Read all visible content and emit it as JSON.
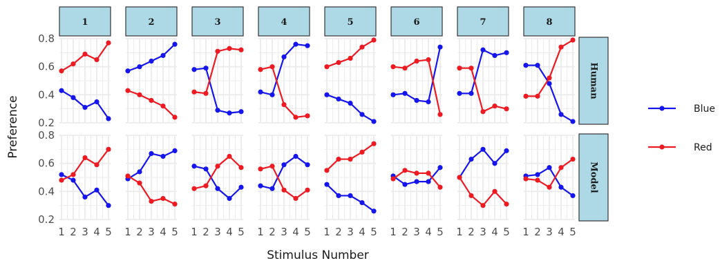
{
  "chart_data": {
    "type": "line",
    "xlabel": "Stimulus Number",
    "ylabel": "Preference",
    "x": [
      1,
      2,
      3,
      4,
      5
    ],
    "ylim": [
      0.2,
      0.8
    ],
    "yticks": [
      0.2,
      0.4,
      0.6,
      0.8
    ],
    "grid": true,
    "legend_position": "right",
    "col_facets": [
      "1",
      "2",
      "3",
      "4",
      "5",
      "6",
      "7",
      "8"
    ],
    "row_facets": [
      "Human",
      "Model"
    ],
    "series_styles": [
      {
        "name": "Blue",
        "color": "#1515ee"
      },
      {
        "name": "Red",
        "color": "#ee1a22"
      }
    ],
    "panels": [
      {
        "row": "Human",
        "col": "1",
        "series": [
          {
            "name": "Blue",
            "values": [
              0.43,
              0.38,
              0.31,
              0.35,
              0.23
            ]
          },
          {
            "name": "Red",
            "values": [
              0.57,
              0.62,
              0.69,
              0.65,
              0.77
            ]
          }
        ]
      },
      {
        "row": "Human",
        "col": "2",
        "series": [
          {
            "name": "Blue",
            "values": [
              0.57,
              0.6,
              0.64,
              0.68,
              0.76
            ]
          },
          {
            "name": "Red",
            "values": [
              0.43,
              0.4,
              0.36,
              0.32,
              0.24
            ]
          }
        ]
      },
      {
        "row": "Human",
        "col": "3",
        "series": [
          {
            "name": "Blue",
            "values": [
              0.58,
              0.59,
              0.29,
              0.27,
              0.28
            ]
          },
          {
            "name": "Red",
            "values": [
              0.42,
              0.41,
              0.71,
              0.73,
              0.72
            ]
          }
        ]
      },
      {
        "row": "Human",
        "col": "4",
        "series": [
          {
            "name": "Blue",
            "values": [
              0.42,
              0.4,
              0.67,
              0.76,
              0.75
            ]
          },
          {
            "name": "Red",
            "values": [
              0.58,
              0.6,
              0.33,
              0.24,
              0.25
            ]
          }
        ]
      },
      {
        "row": "Human",
        "col": "5",
        "series": [
          {
            "name": "Blue",
            "values": [
              0.4,
              0.37,
              0.34,
              0.26,
              0.21
            ]
          },
          {
            "name": "Red",
            "values": [
              0.6,
              0.63,
              0.66,
              0.74,
              0.79
            ]
          }
        ]
      },
      {
        "row": "Human",
        "col": "6",
        "series": [
          {
            "name": "Blue",
            "values": [
              0.4,
              0.41,
              0.36,
              0.35,
              0.74
            ]
          },
          {
            "name": "Red",
            "values": [
              0.6,
              0.59,
              0.64,
              0.65,
              0.26
            ]
          }
        ]
      },
      {
        "row": "Human",
        "col": "7",
        "series": [
          {
            "name": "Blue",
            "values": [
              0.41,
              0.41,
              0.72,
              0.68,
              0.7
            ]
          },
          {
            "name": "Red",
            "values": [
              0.59,
              0.59,
              0.28,
              0.32,
              0.3
            ]
          }
        ]
      },
      {
        "row": "Human",
        "col": "8",
        "series": [
          {
            "name": "Blue",
            "values": [
              0.61,
              0.61,
              0.48,
              0.26,
              0.21
            ]
          },
          {
            "name": "Red",
            "values": [
              0.39,
              0.39,
              0.52,
              0.74,
              0.79
            ]
          }
        ]
      },
      {
        "row": "Model",
        "col": "1",
        "series": [
          {
            "name": "Blue",
            "values": [
              0.52,
              0.48,
              0.36,
              0.41,
              0.3
            ]
          },
          {
            "name": "Red",
            "values": [
              0.48,
              0.52,
              0.64,
              0.59,
              0.7
            ]
          }
        ]
      },
      {
        "row": "Model",
        "col": "2",
        "series": [
          {
            "name": "Blue",
            "values": [
              0.49,
              0.54,
              0.67,
              0.65,
              0.69
            ]
          },
          {
            "name": "Red",
            "values": [
              0.51,
              0.46,
              0.33,
              0.35,
              0.31
            ]
          }
        ]
      },
      {
        "row": "Model",
        "col": "3",
        "series": [
          {
            "name": "Blue",
            "values": [
              0.58,
              0.56,
              0.42,
              0.35,
              0.43
            ]
          },
          {
            "name": "Red",
            "values": [
              0.42,
              0.44,
              0.58,
              0.65,
              0.57
            ]
          }
        ]
      },
      {
        "row": "Model",
        "col": "4",
        "series": [
          {
            "name": "Blue",
            "values": [
              0.44,
              0.42,
              0.59,
              0.65,
              0.59
            ]
          },
          {
            "name": "Red",
            "values": [
              0.56,
              0.58,
              0.41,
              0.35,
              0.41
            ]
          }
        ]
      },
      {
        "row": "Model",
        "col": "5",
        "series": [
          {
            "name": "Blue",
            "values": [
              0.45,
              0.37,
              0.37,
              0.32,
              0.26
            ]
          },
          {
            "name": "Red",
            "values": [
              0.55,
              0.63,
              0.63,
              0.68,
              0.74
            ]
          }
        ]
      },
      {
        "row": "Model",
        "col": "6",
        "series": [
          {
            "name": "Blue",
            "values": [
              0.51,
              0.45,
              0.47,
              0.47,
              0.57
            ]
          },
          {
            "name": "Red",
            "values": [
              0.49,
              0.55,
              0.53,
              0.53,
              0.43
            ]
          }
        ]
      },
      {
        "row": "Model",
        "col": "7",
        "series": [
          {
            "name": "Blue",
            "values": [
              0.5,
              0.63,
              0.7,
              0.6,
              0.69
            ]
          },
          {
            "name": "Red",
            "values": [
              0.5,
              0.37,
              0.3,
              0.4,
              0.31
            ]
          }
        ]
      },
      {
        "row": "Model",
        "col": "8",
        "series": [
          {
            "name": "Blue",
            "values": [
              0.51,
              0.52,
              0.57,
              0.43,
              0.37
            ]
          },
          {
            "name": "Red",
            "values": [
              0.49,
              0.48,
              0.43,
              0.57,
              0.63
            ]
          }
        ]
      }
    ]
  },
  "colors": {
    "strip_fill": "#add8e6",
    "grid": "#ebebeb"
  }
}
